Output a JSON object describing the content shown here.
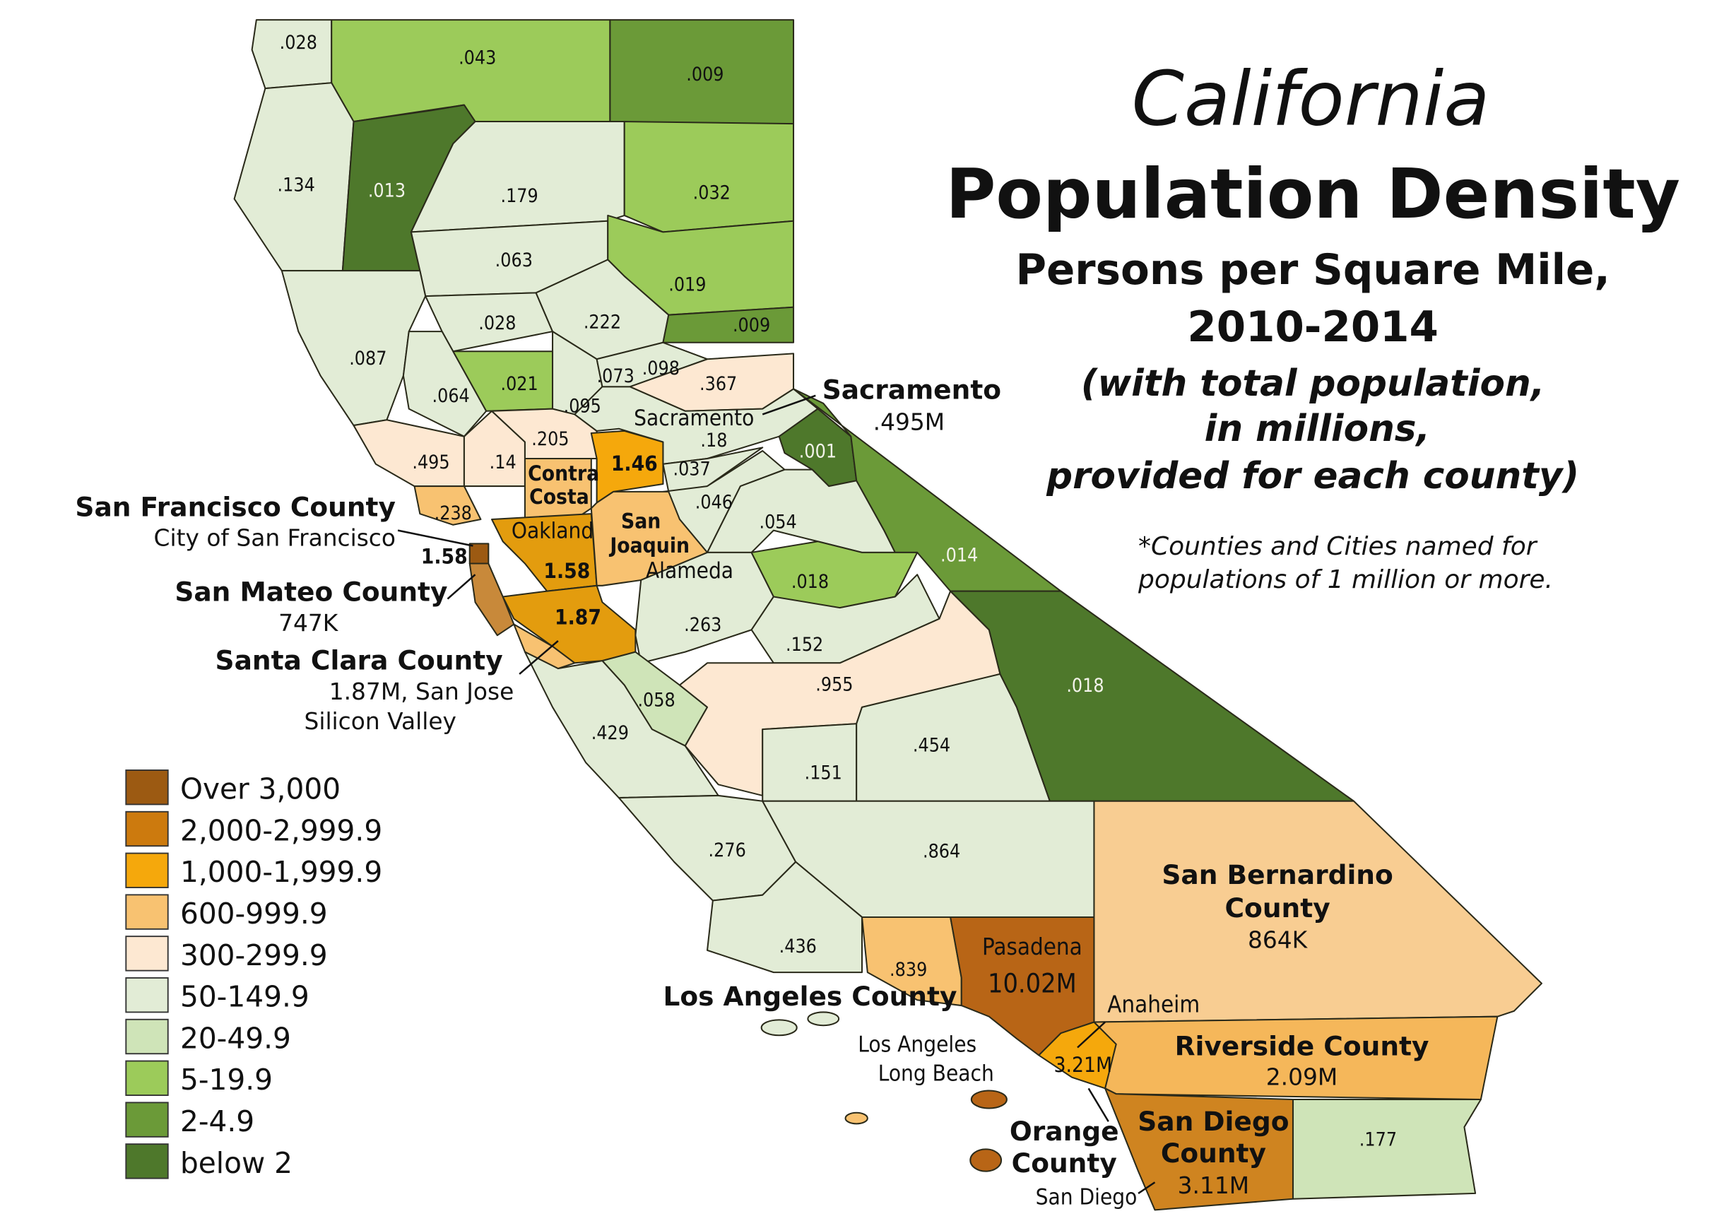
{
  "title": {
    "line1": "California",
    "line2": "Population Density",
    "line3": "Persons per Square Mile,",
    "line4": "2010-2014",
    "line5": "(with total population,",
    "line6": "in millions,",
    "line7": "provided for each county)"
  },
  "note": {
    "line1": "*Counties and Cities named for",
    "line2": "populations of 1 million or more."
  },
  "legend": [
    {
      "label": "Over 3,000",
      "color": "#9c5a12"
    },
    {
      "label": "2,000-2,999.9",
      "color": "#cc7a0e"
    },
    {
      "label": "1,000-1,999.9",
      "color": "#f5a80c"
    },
    {
      "label": "600-999.9",
      "color": "#f8c271"
    },
    {
      "label": "300-299.9",
      "color": "#fde8d2"
    },
    {
      "label": "50-149.9",
      "color": "#e2ecd6"
    },
    {
      "label": "20-49.9",
      "color": "#cfe4b8"
    },
    {
      "label": "5-19.9",
      "color": "#9ccb5a"
    },
    {
      "label": "2-4.9",
      "color": "#6b9a38"
    },
    {
      "label": "below 2",
      "color": "#4e782b"
    }
  ],
  "counties": [
    {
      "value": ".028"
    },
    {
      "value": ".043"
    },
    {
      "value": ".009"
    },
    {
      "value": ".134"
    },
    {
      "value": ".013"
    },
    {
      "value": ".179"
    },
    {
      "value": ".032"
    },
    {
      "value": ".063"
    },
    {
      "value": ".019"
    },
    {
      "value": ".087"
    },
    {
      "value": ".028"
    },
    {
      "value": ".222"
    },
    {
      "value": ".009"
    },
    {
      "value": ".064"
    },
    {
      "value": ".021"
    },
    {
      "value": ".073"
    },
    {
      "value": ".095"
    },
    {
      "value": ".098"
    },
    {
      "value": ".367"
    },
    {
      "value": ".495"
    },
    {
      "value": ".14"
    },
    {
      "value": ".205"
    },
    {
      "value": "1.46"
    },
    {
      "value": ".18"
    },
    {
      "value": ".037"
    },
    {
      "value": ".001"
    },
    {
      "value": ".046"
    },
    {
      "value": ".054"
    },
    {
      "value": ".014"
    },
    {
      "value": ".238"
    },
    {
      "value": "1.58"
    },
    {
      "value": ".263"
    },
    {
      "value": ".018"
    },
    {
      "value": "1.87"
    },
    {
      "value": ".058"
    },
    {
      "value": ".429"
    },
    {
      "value": ".152"
    },
    {
      "value": ".955"
    },
    {
      "value": ".151"
    },
    {
      "value": ".454"
    },
    {
      "value": ".018"
    },
    {
      "value": ".276"
    },
    {
      "value": ".864"
    },
    {
      "value": ".436"
    },
    {
      "value": ".839"
    },
    {
      "value": ".177"
    },
    {
      "value": "1.58"
    }
  ],
  "inline_labels": {
    "contra": "Contra",
    "costa": "Costa",
    "oakland": "Oakland",
    "san": "San",
    "joaquin": "Joaquin",
    "alameda": "Alameda",
    "sacramento_city": "Sacramento",
    "pasadena": "Pasadena",
    "la_pop": "10.02M",
    "anaheim": "Anaheim",
    "orange_pop": "3.21M",
    "los_angeles": "Los Angeles",
    "long_beach": "Long Beach",
    "san_diego_city": "San Diego"
  },
  "callouts": {
    "sacramento": {
      "name": "Sacramento",
      "detail": ".495M"
    },
    "san_francisco": {
      "name": "San Francisco County",
      "detail": "City of San Francisco",
      "value": "1.58"
    },
    "san_mateo": {
      "name": "San Mateo County",
      "detail": "747K"
    },
    "santa_clara": {
      "name": "Santa Clara County",
      "detail": "1.87M, San Jose",
      "detail2": "Silicon Valley"
    },
    "los_angeles": {
      "name": "Los Angeles County"
    },
    "san_bernardino": {
      "name1": "San Bernardino",
      "name2": "County",
      "detail": "864K"
    },
    "riverside": {
      "name": "Riverside County",
      "detail": "2.09M"
    },
    "orange": {
      "name1": "Orange",
      "name2": "County"
    },
    "san_diego": {
      "name1": "San Diego",
      "name2": "County",
      "detail": "3.11M"
    }
  }
}
